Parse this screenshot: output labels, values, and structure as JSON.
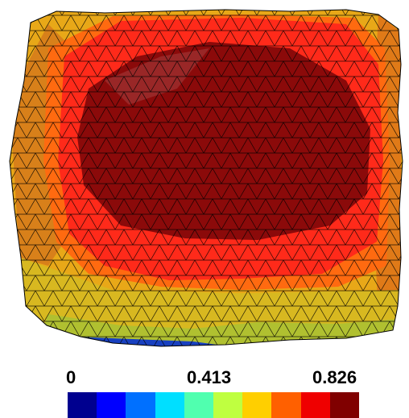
{
  "colorbar": {
    "min_label": "0",
    "mid_label": "0.413",
    "max_label": "0.826",
    "min_value": 0,
    "mid_value": 0.413,
    "max_value": 0.826,
    "colors": [
      "#00008f",
      "#0000ff",
      "#0070ff",
      "#00dfff",
      "#50ffaf",
      "#bfff40",
      "#ffcf00",
      "#ff6000",
      "#ef0000",
      "#800000"
    ]
  },
  "mesh": {
    "description_colors": {
      "center": "#8b0a0a",
      "inner_ring": "#ff2a1a",
      "outer_ring": "#ff6a10",
      "edge": "#f0b000",
      "bottom_low": "#b8d838",
      "bottom_min": "#1840c0"
    }
  }
}
